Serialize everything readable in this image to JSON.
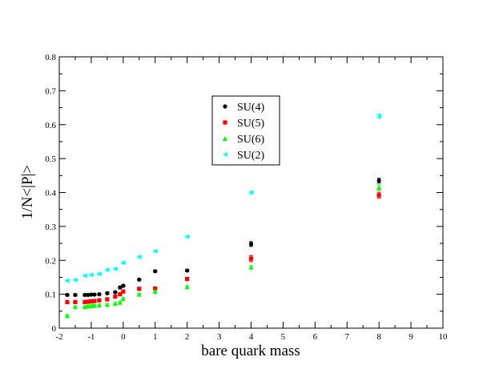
{
  "chart_data": {
    "type": "scatter",
    "title": "",
    "xlabel": "bare quark mass",
    "ylabel": "1/N<|P|>",
    "xlim": [
      -2,
      10
    ],
    "ylim": [
      0,
      0.8
    ],
    "xticks": [
      -2,
      -1,
      0,
      1,
      2,
      3,
      4,
      5,
      6,
      7,
      8,
      9,
      10
    ],
    "yticks": [
      0,
      0.1,
      0.2,
      0.3,
      0.4,
      0.5,
      0.6,
      0.7,
      0.8
    ],
    "xtick_labels": [
      "-2",
      "-1",
      "0",
      "1",
      "2",
      "3",
      "4",
      "5",
      "6",
      "7",
      "8",
      "9",
      "10"
    ],
    "ytick_labels": [
      "0",
      "0.1",
      "0.2",
      "0.3",
      "0.4",
      "0.5",
      "0.6",
      "0.7",
      "0.8"
    ],
    "legend_position": "upper-center",
    "series": [
      {
        "name": "SU(4)",
        "color": "#000000",
        "marker": "circle",
        "points": [
          {
            "x": -1.75,
            "y": 0.098,
            "err": 0.003
          },
          {
            "x": -1.5,
            "y": 0.098,
            "err": 0.003
          },
          {
            "x": -1.2,
            "y": 0.098,
            "err": 0.003
          },
          {
            "x": -1.1,
            "y": 0.098,
            "err": 0.003
          },
          {
            "x": -1.0,
            "y": 0.099,
            "err": 0.003
          },
          {
            "x": -0.9,
            "y": 0.099,
            "err": 0.003
          },
          {
            "x": -0.75,
            "y": 0.1,
            "err": 0.003
          },
          {
            "x": -0.5,
            "y": 0.103,
            "err": 0.003
          },
          {
            "x": -0.25,
            "y": 0.106,
            "err": 0.003
          },
          {
            "x": -0.1,
            "y": 0.12,
            "err": 0.003
          },
          {
            "x": 0.0,
            "y": 0.125,
            "err": 0.003
          },
          {
            "x": 0.5,
            "y": 0.143,
            "err": 0.003
          },
          {
            "x": 1.0,
            "y": 0.168,
            "err": 0.003
          },
          {
            "x": 2.0,
            "y": 0.17,
            "err": 0.003
          },
          {
            "x": 4.0,
            "y": 0.248,
            "err": 0.007
          },
          {
            "x": 8.0,
            "y": 0.435,
            "err": 0.007
          }
        ]
      },
      {
        "name": "SU(5)",
        "color": "#ff0000",
        "marker": "square",
        "points": [
          {
            "x": -1.75,
            "y": 0.077,
            "err": 0.003
          },
          {
            "x": -1.5,
            "y": 0.077,
            "err": 0.003
          },
          {
            "x": -1.2,
            "y": 0.077,
            "err": 0.003
          },
          {
            "x": -1.1,
            "y": 0.078,
            "err": 0.003
          },
          {
            "x": -1.0,
            "y": 0.079,
            "err": 0.003
          },
          {
            "x": -0.9,
            "y": 0.08,
            "err": 0.003
          },
          {
            "x": -0.75,
            "y": 0.082,
            "err": 0.003
          },
          {
            "x": -0.5,
            "y": 0.085,
            "err": 0.003
          },
          {
            "x": -0.25,
            "y": 0.093,
            "err": 0.003
          },
          {
            "x": -0.1,
            "y": 0.1,
            "err": 0.003
          },
          {
            "x": 0.0,
            "y": 0.108,
            "err": 0.003
          },
          {
            "x": 0.5,
            "y": 0.116,
            "err": 0.003
          },
          {
            "x": 1.0,
            "y": 0.117,
            "err": 0.003
          },
          {
            "x": 2.0,
            "y": 0.145,
            "err": 0.003
          },
          {
            "x": 4.0,
            "y": 0.205,
            "err": 0.009
          },
          {
            "x": 8.0,
            "y": 0.392,
            "err": 0.009
          }
        ]
      },
      {
        "name": "SU(6)",
        "color": "#00ff00",
        "marker": "triangle-up",
        "points": [
          {
            "x": -1.75,
            "y": 0.037,
            "err": 0.003
          },
          {
            "x": -1.5,
            "y": 0.063,
            "err": 0.003
          },
          {
            "x": -1.2,
            "y": 0.063,
            "err": 0.003
          },
          {
            "x": -1.1,
            "y": 0.065,
            "err": 0.003
          },
          {
            "x": -1.0,
            "y": 0.066,
            "err": 0.003
          },
          {
            "x": -0.9,
            "y": 0.067,
            "err": 0.003
          },
          {
            "x": -0.75,
            "y": 0.068,
            "err": 0.003
          },
          {
            "x": -0.5,
            "y": 0.07,
            "err": 0.003
          },
          {
            "x": -0.25,
            "y": 0.073,
            "err": 0.003
          },
          {
            "x": -0.1,
            "y": 0.076,
            "err": 0.003
          },
          {
            "x": 0.0,
            "y": 0.087,
            "err": 0.003
          },
          {
            "x": 0.5,
            "y": 0.1,
            "err": 0.003
          },
          {
            "x": 1.0,
            "y": 0.108,
            "err": 0.003
          },
          {
            "x": 2.0,
            "y": 0.122,
            "err": 0.003
          },
          {
            "x": 4.0,
            "y": 0.18,
            "err": 0.004
          },
          {
            "x": 8.0,
            "y": 0.415,
            "err": 0.008
          }
        ]
      },
      {
        "name": "SU(2)",
        "color": "#00ffff",
        "marker": "triangle-left",
        "points": [
          {
            "x": -1.75,
            "y": 0.14,
            "err": 0.003
          },
          {
            "x": -1.5,
            "y": 0.142,
            "err": 0.003
          },
          {
            "x": -1.2,
            "y": 0.155,
            "err": 0.003
          },
          {
            "x": -1.0,
            "y": 0.157,
            "err": 0.003
          },
          {
            "x": -0.75,
            "y": 0.16,
            "err": 0.003
          },
          {
            "x": -0.5,
            "y": 0.172,
            "err": 0.003
          },
          {
            "x": -0.25,
            "y": 0.175,
            "err": 0.003
          },
          {
            "x": 0.0,
            "y": 0.193,
            "err": 0.003
          },
          {
            "x": 0.5,
            "y": 0.21,
            "err": 0.003
          },
          {
            "x": 1.0,
            "y": 0.227,
            "err": 0.003
          },
          {
            "x": 2.0,
            "y": 0.27,
            "err": 0.003
          },
          {
            "x": 4.0,
            "y": 0.4,
            "err": 0.004
          },
          {
            "x": 8.0,
            "y": 0.625,
            "err": 0.006
          }
        ]
      }
    ]
  }
}
